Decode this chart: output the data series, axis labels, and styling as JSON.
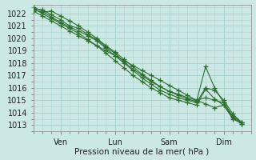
{
  "xlabel": "Pression niveau de la mer( hPa )",
  "bg_color": "#cce8e4",
  "grid_color": "#aad4ce",
  "line_color": "#2d6e2d",
  "ylim": [
    1012.5,
    1022.7
  ],
  "yticks": [
    1013,
    1014,
    1015,
    1016,
    1017,
    1018,
    1019,
    1020,
    1021,
    1022
  ],
  "day_labels": [
    "Ven",
    "Lun",
    "Sam",
    "Dim"
  ],
  "day_positions": [
    24,
    72,
    120,
    168
  ],
  "xlim": [
    0,
    192
  ],
  "series": [
    [
      1022.4,
      1022.3,
      1021.9,
      1021.5,
      1021.0,
      1020.8,
      1020.3,
      1019.9,
      1019.3,
      1018.8,
      1018.1,
      1017.5,
      1017.0,
      1016.5,
      1016.1,
      1015.7,
      1015.5,
      1015.2,
      1015.0,
      1015.2,
      1015.0,
      1014.8,
      1013.7,
      1013.2
    ],
    [
      1022.5,
      1022.2,
      1021.7,
      1021.3,
      1020.9,
      1020.6,
      1020.2,
      1019.8,
      1019.2,
      1018.6,
      1018.0,
      1017.4,
      1016.8,
      1016.3,
      1015.8,
      1015.5,
      1015.2,
      1015.0,
      1014.8,
      1016.0,
      1015.8,
      1015.0,
      1013.9,
      1013.2
    ],
    [
      1022.3,
      1022.1,
      1022.2,
      1021.8,
      1021.4,
      1021.0,
      1020.5,
      1020.0,
      1019.4,
      1018.9,
      1018.3,
      1017.7,
      1017.1,
      1016.6,
      1016.1,
      1015.7,
      1015.4,
      1015.1,
      1014.9,
      1017.7,
      1016.0,
      1014.8,
      1013.7,
      1013.2
    ],
    [
      1022.4,
      1022.0,
      1021.6,
      1021.2,
      1020.8,
      1020.4,
      1019.9,
      1019.4,
      1018.8,
      1018.2,
      1017.6,
      1017.0,
      1016.5,
      1016.0,
      1015.6,
      1015.2,
      1015.0,
      1014.8,
      1014.6,
      1015.9,
      1015.1,
      1014.6,
      1013.6,
      1013.1
    ],
    [
      1022.2,
      1021.8,
      1021.4,
      1021.0,
      1020.6,
      1020.2,
      1019.8,
      1019.4,
      1019.0,
      1018.6,
      1018.2,
      1017.8,
      1017.4,
      1017.0,
      1016.6,
      1016.2,
      1015.8,
      1015.4,
      1015.0,
      1014.7,
      1014.4,
      1014.6,
      1013.5,
      1013.1
    ]
  ],
  "x_points": [
    0,
    8,
    16,
    24,
    32,
    40,
    48,
    56,
    64,
    72,
    80,
    88,
    96,
    104,
    112,
    120,
    128,
    136,
    144,
    152,
    160,
    168,
    176,
    184
  ]
}
